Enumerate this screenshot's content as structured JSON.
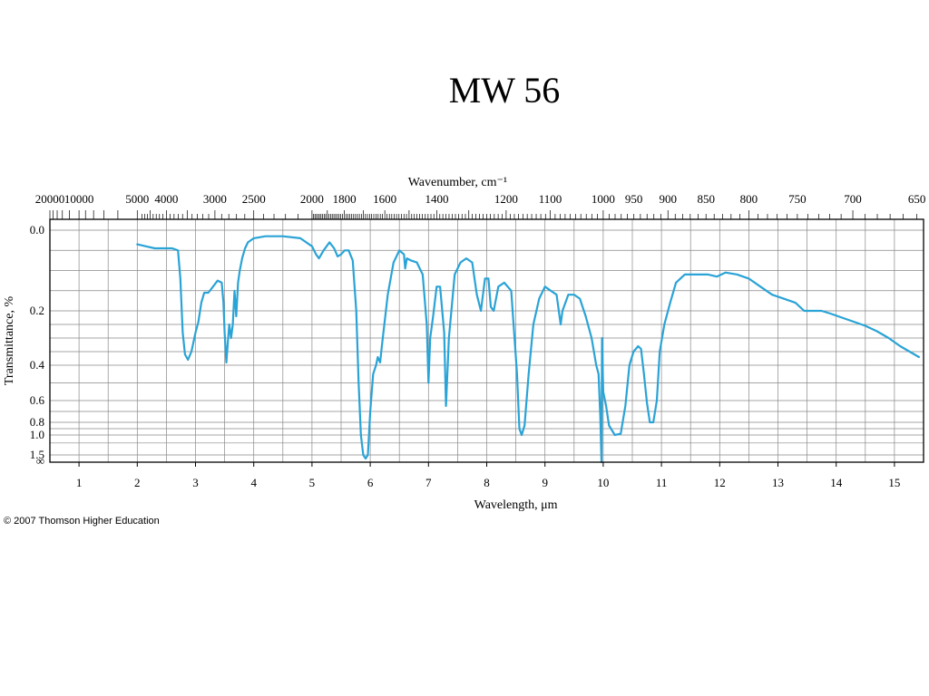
{
  "slide": {
    "title": "MW 56",
    "credit": "© 2007 Thomson Higher Education"
  },
  "chart_data": {
    "type": "line",
    "title": "",
    "xlabel": "Wavelength, μm",
    "ylabel": "Transmittance, %",
    "top_axis_label": "Wavenumber, cm⁻¹",
    "xlim": [
      0.5,
      15.5
    ],
    "x_ticks": [
      1,
      2,
      3,
      4,
      5,
      6,
      7,
      8,
      9,
      10,
      11,
      12,
      13,
      14,
      15
    ],
    "y_scale": "absorbance",
    "ylim": [
      0,
      1.6
    ],
    "y_ticks": [
      {
        "value": 0.0,
        "label": "0.0"
      },
      {
        "value": 0.2,
        "label": "0.2"
      },
      {
        "value": 0.4,
        "label": "0.4"
      },
      {
        "value": 0.6,
        "label": "0.6"
      },
      {
        "value": 0.8,
        "label": "0.8"
      },
      {
        "value": 1.0,
        "label": "1.0"
      },
      {
        "value": 1.5,
        "label": "1.5"
      },
      {
        "value": 1.6,
        "label": "∞"
      }
    ],
    "top_ticks": [
      {
        "label": "20000",
        "wavelength": 0.5
      },
      {
        "label": "10000",
        "wavelength": 1.0
      },
      {
        "label": "5000",
        "wavelength": 2.0
      },
      {
        "label": "4000",
        "wavelength": 2.5
      },
      {
        "label": "3000",
        "wavelength": 3.333
      },
      {
        "label": "2500",
        "wavelength": 4.0
      },
      {
        "label": "2000",
        "wavelength": 5.0
      },
      {
        "label": "1800",
        "wavelength": 5.556
      },
      {
        "label": "1600",
        "wavelength": 6.25
      },
      {
        "label": "1400",
        "wavelength": 7.143
      },
      {
        "label": "1200",
        "wavelength": 8.333
      },
      {
        "label": "1100",
        "wavelength": 9.091
      },
      {
        "label": "1000",
        "wavelength": 10.0
      },
      {
        "label": "950",
        "wavelength": 10.526
      },
      {
        "label": "900",
        "wavelength": 11.111
      },
      {
        "label": "850",
        "wavelength": 11.765
      },
      {
        "label": "800",
        "wavelength": 12.5
      },
      {
        "label": "750",
        "wavelength": 13.333
      },
      {
        "label": "700",
        "wavelength": 14.286
      },
      {
        "label": "650",
        "wavelength": 15.385
      }
    ],
    "grid": true,
    "line_color": "#2aa3d6",
    "series": [
      {
        "x": [
          2.0,
          2.15,
          2.3,
          2.4,
          2.5,
          2.6,
          2.7,
          2.74,
          2.78,
          2.82,
          2.87,
          2.93,
          3.0,
          3.05,
          3.1,
          3.15,
          3.22,
          3.3,
          3.38,
          3.45,
          3.48,
          3.5,
          3.53,
          3.56,
          3.58,
          3.61,
          3.64,
          3.67,
          3.7,
          3.73,
          3.76,
          3.8,
          3.85,
          3.9,
          4.0,
          4.2,
          4.5,
          4.8,
          5.0,
          5.07,
          5.12,
          5.2,
          5.3,
          5.38,
          5.44,
          5.5,
          5.56,
          5.63,
          5.7,
          5.76,
          5.8,
          5.84,
          5.88,
          5.92,
          5.96,
          6.0,
          6.05,
          6.1,
          6.13,
          6.17,
          6.2,
          6.3,
          6.4,
          6.5,
          6.58,
          6.6,
          6.63,
          6.7,
          6.8,
          6.9,
          6.97,
          7.0,
          7.03,
          7.08,
          7.14,
          7.2,
          7.27,
          7.3,
          7.35,
          7.45,
          7.55,
          7.65,
          7.75,
          7.83,
          7.9,
          7.97,
          8.03,
          8.07,
          8.12,
          8.2,
          8.3,
          8.42,
          8.52,
          8.56,
          8.6,
          8.65,
          8.72,
          8.8,
          8.9,
          9.0,
          9.1,
          9.2,
          9.27,
          9.3,
          9.4,
          9.5,
          9.6,
          9.7,
          9.8,
          9.88,
          9.92,
          9.95,
          9.97,
          9.98,
          10.0,
          10.05,
          10.1,
          10.2,
          10.3,
          10.38,
          10.45,
          10.52,
          10.6,
          10.65,
          10.7,
          10.75,
          10.8,
          10.86,
          10.92,
          10.97,
          11.05,
          11.15,
          11.25,
          11.4,
          11.6,
          11.8,
          11.95,
          12.1,
          12.3,
          12.5,
          12.7,
          12.9,
          13.1,
          13.3,
          13.45,
          13.6,
          13.75,
          13.9,
          14.1,
          14.3,
          14.5,
          14.7,
          14.9,
          15.1,
          15.3,
          15.42
        ],
        "y": [
          0.035,
          0.04,
          0.045,
          0.045,
          0.045,
          0.045,
          0.05,
          0.12,
          0.28,
          0.36,
          0.38,
          0.35,
          0.28,
          0.24,
          0.18,
          0.155,
          0.155,
          0.14,
          0.125,
          0.13,
          0.18,
          0.28,
          0.39,
          0.3,
          0.25,
          0.3,
          0.25,
          0.15,
          0.22,
          0.13,
          0.1,
          0.07,
          0.045,
          0.03,
          0.02,
          0.015,
          0.015,
          0.02,
          0.04,
          0.06,
          0.07,
          0.05,
          0.03,
          0.045,
          0.065,
          0.06,
          0.05,
          0.05,
          0.075,
          0.2,
          0.5,
          1.0,
          1.5,
          1.55,
          1.5,
          0.7,
          0.45,
          0.4,
          0.37,
          0.39,
          0.33,
          0.16,
          0.08,
          0.05,
          0.06,
          0.095,
          0.07,
          0.075,
          0.08,
          0.11,
          0.25,
          0.5,
          0.3,
          0.22,
          0.14,
          0.14,
          0.28,
          0.65,
          0.3,
          0.11,
          0.08,
          0.07,
          0.08,
          0.16,
          0.2,
          0.12,
          0.12,
          0.19,
          0.2,
          0.14,
          0.13,
          0.15,
          0.45,
          0.9,
          1.0,
          0.85,
          0.45,
          0.25,
          0.17,
          0.14,
          0.15,
          0.16,
          0.25,
          0.2,
          0.16,
          0.16,
          0.17,
          0.22,
          0.3,
          0.4,
          0.45,
          0.75,
          1.6,
          0.3,
          0.55,
          0.65,
          0.85,
          1.0,
          0.98,
          0.65,
          0.4,
          0.35,
          0.33,
          0.34,
          0.45,
          0.62,
          0.8,
          0.8,
          0.6,
          0.35,
          0.25,
          0.18,
          0.13,
          0.11,
          0.11,
          0.11,
          0.115,
          0.105,
          0.11,
          0.12,
          0.14,
          0.16,
          0.17,
          0.18,
          0.2,
          0.2,
          0.2,
          0.21,
          0.225,
          0.24,
          0.255,
          0.275,
          0.3,
          0.33,
          0.355,
          0.37
        ]
      }
    ]
  }
}
